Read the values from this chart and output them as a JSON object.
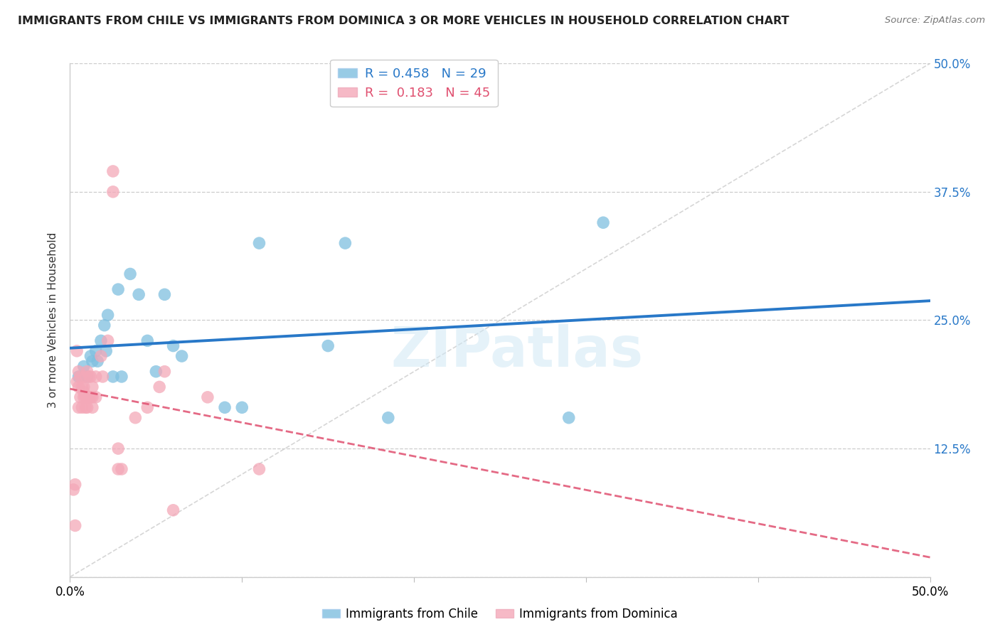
{
  "title": "IMMIGRANTS FROM CHILE VS IMMIGRANTS FROM DOMINICA 3 OR MORE VEHICLES IN HOUSEHOLD CORRELATION CHART",
  "source": "Source: ZipAtlas.com",
  "ylabel": "3 or more Vehicles in Household",
  "xlim": [
    0.0,
    0.5
  ],
  "ylim": [
    0.0,
    0.5
  ],
  "xticks": [
    0.0,
    0.1,
    0.2,
    0.3,
    0.4,
    0.5
  ],
  "xticklabels": [
    "0.0%",
    "",
    "",
    "",
    "",
    "50.0%"
  ],
  "yticks_right": [
    0.125,
    0.25,
    0.375,
    0.5
  ],
  "yticklabels_right": [
    "12.5%",
    "25.0%",
    "37.5%",
    "50.0%"
  ],
  "chile_R": 0.458,
  "chile_N": 29,
  "dominica_R": 0.183,
  "dominica_N": 45,
  "chile_color": "#7fbfdf",
  "dominica_color": "#f4a8b8",
  "chile_line_color": "#2878c8",
  "dominica_line_color": "#e05070",
  "diagonal_color": "#cccccc",
  "watermark": "ZIPatlas",
  "chile_x": [
    0.005,
    0.008,
    0.01,
    0.012,
    0.013,
    0.015,
    0.016,
    0.018,
    0.02,
    0.021,
    0.022,
    0.025,
    0.028,
    0.03,
    0.035,
    0.04,
    0.045,
    0.05,
    0.055,
    0.06,
    0.065,
    0.09,
    0.1,
    0.11,
    0.15,
    0.16,
    0.185,
    0.29,
    0.31
  ],
  "chile_y": [
    0.195,
    0.205,
    0.195,
    0.215,
    0.21,
    0.22,
    0.21,
    0.23,
    0.245,
    0.22,
    0.255,
    0.195,
    0.28,
    0.195,
    0.295,
    0.275,
    0.23,
    0.2,
    0.275,
    0.225,
    0.215,
    0.165,
    0.165,
    0.325,
    0.225,
    0.325,
    0.155,
    0.155,
    0.345
  ],
  "dominica_x": [
    0.002,
    0.003,
    0.003,
    0.004,
    0.004,
    0.005,
    0.005,
    0.005,
    0.006,
    0.006,
    0.007,
    0.007,
    0.008,
    0.008,
    0.008,
    0.009,
    0.009,
    0.009,
    0.01,
    0.01,
    0.01,
    0.011,
    0.011,
    0.012,
    0.012,
    0.013,
    0.013,
    0.013,
    0.015,
    0.015,
    0.018,
    0.019,
    0.022,
    0.025,
    0.025,
    0.028,
    0.028,
    0.03,
    0.038,
    0.045,
    0.052,
    0.055,
    0.06,
    0.08,
    0.11
  ],
  "dominica_y": [
    0.085,
    0.05,
    0.09,
    0.22,
    0.19,
    0.2,
    0.185,
    0.165,
    0.195,
    0.175,
    0.185,
    0.165,
    0.18,
    0.175,
    0.185,
    0.195,
    0.175,
    0.165,
    0.2,
    0.175,
    0.165,
    0.195,
    0.175,
    0.195,
    0.175,
    0.185,
    0.175,
    0.165,
    0.195,
    0.175,
    0.215,
    0.195,
    0.23,
    0.375,
    0.395,
    0.105,
    0.125,
    0.105,
    0.155,
    0.165,
    0.185,
    0.2,
    0.065,
    0.175,
    0.105
  ]
}
